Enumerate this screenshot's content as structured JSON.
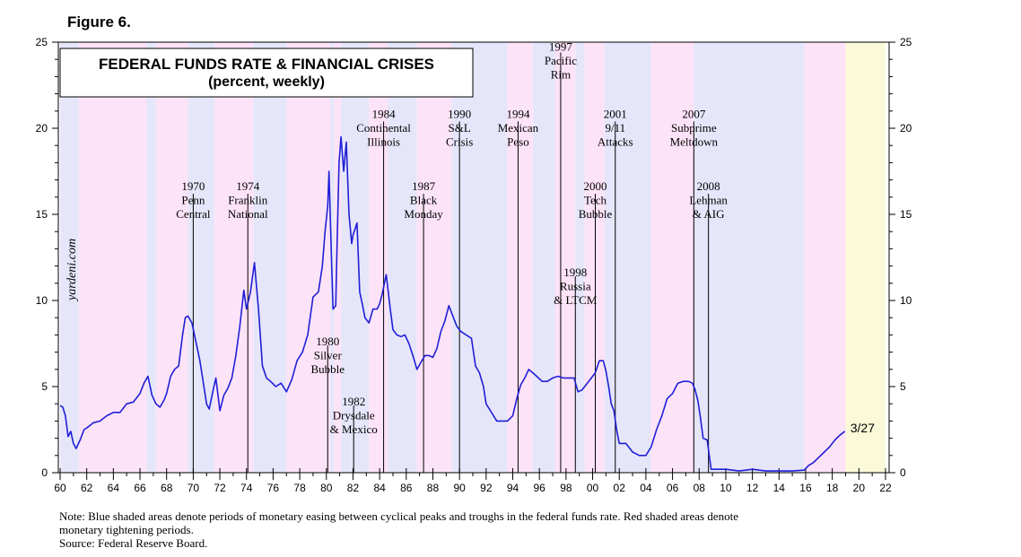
{
  "figure_label": "Figure 6.",
  "chart_data": {
    "type": "line",
    "title": "FEDERAL FUNDS RATE & FINANCIAL CRISES",
    "subtitle": "(percent, weekly)",
    "watermark": "yardeni.com",
    "xlim": [
      1960,
      2022
    ],
    "ylim": [
      0,
      25
    ],
    "y_ticks": [
      0,
      5,
      10,
      15,
      20,
      25
    ],
    "x_ticks": [
      1960,
      1962,
      1964,
      1966,
      1968,
      1970,
      1972,
      1974,
      1976,
      1978,
      1980,
      1982,
      1984,
      1986,
      1988,
      1990,
      1992,
      1994,
      1996,
      1998,
      2000,
      2002,
      2004,
      2006,
      2008,
      2010,
      2012,
      2014,
      2016,
      2018,
      2020,
      2022
    ],
    "x_tick_labels": [
      "60",
      "62",
      "64",
      "66",
      "68",
      "70",
      "72",
      "74",
      "76",
      "78",
      "80",
      "82",
      "84",
      "86",
      "88",
      "90",
      "92",
      "94",
      "96",
      "98",
      "00",
      "02",
      "04",
      "06",
      "08",
      "10",
      "12",
      "14",
      "16",
      "18",
      "20",
      "22"
    ],
    "colors": {
      "line": "#1f1fd8",
      "easing": "#e6e6fa",
      "tightening": "#fde3f7",
      "forecast": "#fafad9"
    },
    "shaded_periods": [
      {
        "kind": "easing",
        "start": 1960.0,
        "end": 1961.4
      },
      {
        "kind": "tightening",
        "start": 1961.4,
        "end": 1966.5
      },
      {
        "kind": "easing",
        "start": 1966.5,
        "end": 1967.2
      },
      {
        "kind": "tightening",
        "start": 1967.2,
        "end": 1969.6
      },
      {
        "kind": "easing",
        "start": 1969.6,
        "end": 1971.6
      },
      {
        "kind": "tightening",
        "start": 1971.6,
        "end": 1974.5
      },
      {
        "kind": "easing",
        "start": 1974.5,
        "end": 1977.0
      },
      {
        "kind": "tightening",
        "start": 1977.0,
        "end": 1980.3
      },
      {
        "kind": "easing",
        "start": 1980.3,
        "end": 1980.6
      },
      {
        "kind": "tightening",
        "start": 1980.6,
        "end": 1981.1
      },
      {
        "kind": "easing",
        "start": 1981.1,
        "end": 1983.2
      },
      {
        "kind": "tightening",
        "start": 1983.2,
        "end": 1984.6
      },
      {
        "kind": "easing",
        "start": 1984.6,
        "end": 1986.8
      },
      {
        "kind": "tightening",
        "start": 1986.8,
        "end": 1989.4
      },
      {
        "kind": "easing",
        "start": 1989.4,
        "end": 1993.6
      },
      {
        "kind": "tightening",
        "start": 1993.6,
        "end": 1995.5
      },
      {
        "kind": "easing",
        "start": 1995.5,
        "end": 1997.2
      },
      {
        "kind": "tightening",
        "start": 1997.2,
        "end": 1998.7
      },
      {
        "kind": "easing",
        "start": 1998.7,
        "end": 1999.4
      },
      {
        "kind": "tightening",
        "start": 1999.4,
        "end": 2000.9
      },
      {
        "kind": "easing",
        "start": 2000.9,
        "end": 2004.4
      },
      {
        "kind": "tightening",
        "start": 2004.4,
        "end": 2007.6
      },
      {
        "kind": "easing",
        "start": 2007.6,
        "end": 2015.9
      },
      {
        "kind": "tightening",
        "start": 2015.9,
        "end": 2019.0
      },
      {
        "kind": "forecast",
        "start": 2019.0,
        "end": 2022.0
      }
    ],
    "series": [
      {
        "x": [
          1960.0,
          1960.2,
          1960.4,
          1960.6,
          1960.8,
          1961.0,
          1961.2,
          1961.5,
          1961.8,
          1962.0,
          1962.5,
          1963.0,
          1963.5,
          1964.0,
          1964.5,
          1965.0,
          1965.5,
          1966.0,
          1966.3,
          1966.6,
          1966.9,
          1967.2,
          1967.5,
          1967.8,
          1968.0,
          1968.3,
          1968.6,
          1968.9,
          1969.2,
          1969.4,
          1969.6,
          1969.9,
          1970.2,
          1970.5,
          1970.8,
          1971.0,
          1971.2,
          1971.5,
          1971.7,
          1972.0,
          1972.3,
          1972.6,
          1972.9,
          1973.2,
          1973.5,
          1973.8,
          1974.0,
          1974.3,
          1974.6,
          1974.9,
          1975.2,
          1975.5,
          1975.8,
          1976.2,
          1976.6,
          1977.0,
          1977.4,
          1977.8,
          1978.2,
          1978.6,
          1979.0,
          1979.4,
          1979.7,
          1979.9,
          1980.1,
          1980.2,
          1980.4,
          1980.5,
          1980.7,
          1980.8,
          1980.95,
          1981.1,
          1981.3,
          1981.5,
          1981.7,
          1981.9,
          1982.0,
          1982.3,
          1982.5,
          1982.7,
          1982.9,
          1983.2,
          1983.5,
          1983.8,
          1984.0,
          1984.2,
          1984.5,
          1984.8,
          1985.0,
          1985.3,
          1985.6,
          1985.9,
          1986.2,
          1986.5,
          1986.8,
          1987.1,
          1987.4,
          1987.7,
          1988.0,
          1988.3,
          1988.6,
          1988.9,
          1989.2,
          1989.5,
          1989.8,
          1990.1,
          1990.5,
          1990.9,
          1991.2,
          1991.5,
          1991.8,
          1992.0,
          1992.4,
          1992.8,
          1993.2,
          1993.6,
          1994.0,
          1994.3,
          1994.6,
          1994.9,
          1995.2,
          1995.5,
          1995.8,
          1996.2,
          1996.6,
          1997.0,
          1997.4,
          1997.8,
          1998.2,
          1998.6,
          1998.9,
          1999.2,
          1999.6,
          1999.9,
          2000.2,
          2000.5,
          2000.8,
          2001.0,
          2001.2,
          2001.4,
          2001.6,
          2001.8,
          2002.0,
          2002.5,
          2003.0,
          2003.5,
          2004.0,
          2004.4,
          2004.8,
          2005.2,
          2005.6,
          2006.0,
          2006.4,
          2006.8,
          2007.2,
          2007.5,
          2007.7,
          2007.9,
          2008.1,
          2008.3,
          2008.6,
          2008.9,
          2009.2,
          2010.0,
          2011.0,
          2012.0,
          2013.0,
          2014.0,
          2015.0,
          2015.9,
          2016.2,
          2016.6,
          2017.0,
          2017.4,
          2017.8,
          2018.2,
          2018.6,
          2018.95
        ],
        "y": [
          3.9,
          3.8,
          3.3,
          2.1,
          2.4,
          1.7,
          1.4,
          1.9,
          2.5,
          2.6,
          2.9,
          3.0,
          3.3,
          3.5,
          3.5,
          4.0,
          4.1,
          4.6,
          5.2,
          5.6,
          4.5,
          4.0,
          3.8,
          4.2,
          4.6,
          5.6,
          6.0,
          6.2,
          8.0,
          9.0,
          9.1,
          8.7,
          7.6,
          6.5,
          5.0,
          4.0,
          3.7,
          4.8,
          5.5,
          3.6,
          4.5,
          4.9,
          5.5,
          6.8,
          8.5,
          10.6,
          9.5,
          10.5,
          12.2,
          9.5,
          6.2,
          5.5,
          5.3,
          5.0,
          5.2,
          4.7,
          5.4,
          6.5,
          7.0,
          8.0,
          10.2,
          10.5,
          12.0,
          14.0,
          15.5,
          17.5,
          12.0,
          9.5,
          9.7,
          13.0,
          18.0,
          19.5,
          17.5,
          19.2,
          15.0,
          13.3,
          13.8,
          14.5,
          10.5,
          9.8,
          9.0,
          8.7,
          9.5,
          9.5,
          9.8,
          10.4,
          11.5,
          9.5,
          8.3,
          8.0,
          7.9,
          8.0,
          7.5,
          6.8,
          6.0,
          6.4,
          6.8,
          6.8,
          6.7,
          7.2,
          8.2,
          8.8,
          9.7,
          9.1,
          8.5,
          8.2,
          8.0,
          7.8,
          6.2,
          5.8,
          5.0,
          4.0,
          3.5,
          3.0,
          3.0,
          3.0,
          3.3,
          4.3,
          5.1,
          5.5,
          6.0,
          5.8,
          5.6,
          5.3,
          5.3,
          5.5,
          5.6,
          5.5,
          5.5,
          5.5,
          4.7,
          4.8,
          5.2,
          5.5,
          5.8,
          6.5,
          6.5,
          5.9,
          5.0,
          4.0,
          3.6,
          2.5,
          1.7,
          1.7,
          1.2,
          1.0,
          1.0,
          1.5,
          2.5,
          3.3,
          4.3,
          4.6,
          5.2,
          5.3,
          5.3,
          5.2,
          4.8,
          4.2,
          3.2,
          2.0,
          1.9,
          0.2,
          0.2,
          0.2,
          0.1,
          0.2,
          0.1,
          0.1,
          0.1,
          0.15,
          0.4,
          0.6,
          0.9,
          1.2,
          1.5,
          1.9,
          2.2,
          2.4
        ]
      }
    ],
    "end_label": "3/27",
    "annotations": [
      {
        "year": 1970.0,
        "lines": [
          "1970",
          "Penn",
          "Central"
        ],
        "text_y": 16.4,
        "line_y": 16.2
      },
      {
        "year": 1974.1,
        "lines": [
          "1974",
          "Franklin",
          "National"
        ],
        "text_y": 16.4,
        "line_y": 16.2
      },
      {
        "year": 1980.1,
        "lines": [
          "1980",
          "Silver",
          "Bubble"
        ],
        "text_y": 7.4,
        "line_y": 7.4
      },
      {
        "year": 1982.05,
        "lines": [
          "1982",
          "Drysdale",
          "& Mexico"
        ],
        "text_y": 3.9,
        "line_y": 3.9
      },
      {
        "year": 1984.3,
        "lines": [
          "1984",
          "Continental",
          "Illinois"
        ],
        "text_y": 20.6,
        "line_y": 20.4
      },
      {
        "year": 1987.3,
        "lines": [
          "1987",
          "Black",
          "Monday"
        ],
        "text_y": 16.4,
        "line_y": 16.2
      },
      {
        "year": 1990.0,
        "lines": [
          "1990",
          "S&L",
          "Crisis"
        ],
        "text_y": 20.6,
        "line_y": 20.4
      },
      {
        "year": 1994.4,
        "lines": [
          "1994",
          "Mexican",
          "Peso"
        ],
        "text_y": 20.6,
        "line_y": 20.4
      },
      {
        "year": 1997.6,
        "lines": [
          "1997",
          "Pacific",
          "Rim"
        ],
        "text_y": 24.5,
        "line_y": 24.4
      },
      {
        "year": 1998.7,
        "lines": [
          "1998",
          "Russia",
          "& LTCM"
        ],
        "text_y": 11.4,
        "line_y": 11.4
      },
      {
        "year": 2000.2,
        "lines": [
          "2000",
          "Tech",
          "Bubble"
        ],
        "text_y": 16.4,
        "line_y": 16.2
      },
      {
        "year": 2001.7,
        "lines": [
          "2001",
          "9/11",
          "Attacks"
        ],
        "text_y": 20.6,
        "line_y": 20.4
      },
      {
        "year": 2007.6,
        "lines": [
          "2007",
          "Subprime",
          "Meltdown"
        ],
        "text_y": 20.6,
        "line_y": 20.4
      },
      {
        "year": 2008.7,
        "lines": [
          "2008",
          "Lehman",
          "& AIG"
        ],
        "text_y": 16.4,
        "line_y": 16.2
      }
    ]
  },
  "note_lines": [
    "Note: Blue shaded areas denote periods of monetary easing between cyclical peaks and troughs in the federal funds rate. Red shaded areas denote",
    "monetary tightening periods.",
    "Source: Federal Reserve Board."
  ]
}
